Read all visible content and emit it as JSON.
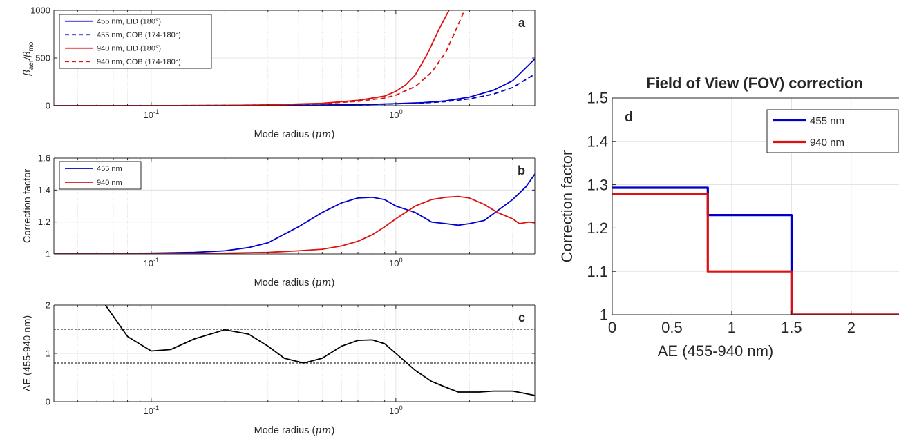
{
  "colors": {
    "blue": "#0000cc",
    "red": "#dd1111",
    "black": "#000000"
  },
  "chart_data": [
    {
      "id": "a",
      "type": "line",
      "panel_label": "a",
      "xlabel_prefix": "Mode radius (",
      "xlabel_unit": "μm",
      "xlabel_suffix": ")",
      "ylabel_main": "β",
      "ylabel_sub1": "aer",
      "ylabel_mid": "/β",
      "ylabel_sub2": "mol",
      "x_scale": "log",
      "xlim": [
        0.04,
        3.7
      ],
      "ylim": [
        0,
        1000
      ],
      "yticks": [
        0,
        500,
        1000
      ],
      "xtick_labels": [
        {
          "value": 0.1,
          "base": "10",
          "exp": "-1"
        },
        {
          "value": 1,
          "base": "10",
          "exp": "0"
        }
      ],
      "grid": true,
      "legend_position": "top-left",
      "series": [
        {
          "name": "455 nm, LID (180°)",
          "color": "blue",
          "dash": "solid",
          "x": [
            0.04,
            0.1,
            0.3,
            0.5,
            0.8,
            1.0,
            1.3,
            1.6,
            2.0,
            2.5,
            3.0,
            3.7
          ],
          "y": [
            0,
            0,
            2,
            6,
            13,
            20,
            32,
            50,
            90,
            160,
            260,
            490
          ]
        },
        {
          "name": "455 nm, COB (174-180°)",
          "color": "blue",
          "dash": "dashed",
          "x": [
            0.04,
            0.1,
            0.3,
            0.5,
            0.8,
            1.0,
            1.3,
            1.6,
            2.0,
            2.5,
            3.0,
            3.7
          ],
          "y": [
            0,
            0,
            2,
            6,
            12,
            18,
            28,
            42,
            70,
            120,
            190,
            330
          ]
        },
        {
          "name": "940 nm, LID (180°)",
          "color": "red",
          "dash": "solid",
          "x": [
            0.04,
            0.1,
            0.2,
            0.3,
            0.5,
            0.7,
            0.9,
            1.0,
            1.1,
            1.2,
            1.35,
            1.5,
            1.65
          ],
          "y": [
            0,
            0,
            3,
            8,
            25,
            55,
            100,
            150,
            220,
            320,
            550,
            800,
            1000
          ]
        },
        {
          "name": "940 nm, COB (174-180°)",
          "color": "red",
          "dash": "dashed",
          "x": [
            0.04,
            0.1,
            0.2,
            0.3,
            0.5,
            0.7,
            0.9,
            1.0,
            1.2,
            1.4,
            1.6,
            1.8,
            1.9
          ],
          "y": [
            0,
            0,
            3,
            7,
            22,
            45,
            80,
            110,
            200,
            350,
            560,
            850,
            990
          ]
        }
      ]
    },
    {
      "id": "b",
      "type": "line",
      "panel_label": "b",
      "xlabel_prefix": "Mode radius (",
      "xlabel_unit": "μm",
      "xlabel_suffix": ")",
      "ylabel": "Correction factor",
      "x_scale": "log",
      "xlim": [
        0.04,
        3.7
      ],
      "ylim": [
        1,
        1.6
      ],
      "yticks": [
        1,
        1.2,
        1.4,
        1.6
      ],
      "xtick_labels": [
        {
          "value": 0.1,
          "base": "10",
          "exp": "-1"
        },
        {
          "value": 1,
          "base": "10",
          "exp": "0"
        }
      ],
      "grid": true,
      "legend_position": "top-left",
      "series": [
        {
          "name": "455 nm",
          "color": "blue",
          "dash": "solid",
          "x": [
            0.04,
            0.1,
            0.15,
            0.2,
            0.25,
            0.3,
            0.4,
            0.5,
            0.6,
            0.7,
            0.8,
            0.9,
            1.0,
            1.2,
            1.4,
            1.6,
            1.8,
            2.0,
            2.3,
            2.6,
            3.0,
            3.4,
            3.7
          ],
          "y": [
            1.0,
            1.005,
            1.01,
            1.02,
            1.04,
            1.07,
            1.17,
            1.26,
            1.32,
            1.35,
            1.355,
            1.34,
            1.3,
            1.26,
            1.2,
            1.19,
            1.18,
            1.19,
            1.21,
            1.27,
            1.34,
            1.42,
            1.5
          ]
        },
        {
          "name": "940 nm",
          "color": "red",
          "dash": "solid",
          "x": [
            0.04,
            0.1,
            0.2,
            0.3,
            0.4,
            0.5,
            0.6,
            0.7,
            0.8,
            0.9,
            1.0,
            1.2,
            1.4,
            1.6,
            1.8,
            2.0,
            2.3,
            2.6,
            3.0,
            3.2,
            3.5,
            3.7
          ],
          "y": [
            1.0,
            1.0,
            1.005,
            1.01,
            1.02,
            1.03,
            1.05,
            1.08,
            1.12,
            1.17,
            1.22,
            1.3,
            1.34,
            1.355,
            1.36,
            1.35,
            1.31,
            1.26,
            1.22,
            1.19,
            1.2,
            1.195
          ]
        }
      ]
    },
    {
      "id": "c",
      "type": "line",
      "panel_label": "c",
      "xlabel_prefix": "Mode radius (",
      "xlabel_unit": "μm",
      "xlabel_suffix": ")",
      "ylabel": "AE (455-940 nm)",
      "x_scale": "log",
      "xlim": [
        0.04,
        3.7
      ],
      "ylim": [
        0,
        2
      ],
      "yticks": [
        0,
        1,
        2
      ],
      "xtick_labels": [
        {
          "value": 0.1,
          "base": "10",
          "exp": "-1"
        },
        {
          "value": 1,
          "base": "10",
          "exp": "0"
        }
      ],
      "grid": true,
      "reference_lines": [
        0.8,
        1.5
      ],
      "series": [
        {
          "color": "black",
          "dash": "solid",
          "x": [
            0.065,
            0.08,
            0.1,
            0.12,
            0.15,
            0.2,
            0.25,
            0.3,
            0.35,
            0.42,
            0.5,
            0.6,
            0.7,
            0.8,
            0.9,
            1.0,
            1.2,
            1.4,
            1.6,
            1.8,
            2.2,
            2.5,
            3.0,
            3.3,
            3.7
          ],
          "y": [
            2.0,
            1.35,
            1.05,
            1.08,
            1.3,
            1.49,
            1.4,
            1.15,
            0.9,
            0.8,
            0.9,
            1.15,
            1.27,
            1.28,
            1.2,
            1.0,
            0.65,
            0.42,
            0.3,
            0.2,
            0.2,
            0.22,
            0.22,
            0.18,
            0.13
          ]
        }
      ]
    },
    {
      "id": "d",
      "type": "line",
      "title": "Field of View (FOV) correction",
      "panel_label": "d",
      "xlabel": "AE (455-940 nm)",
      "ylabel": "Correction factor",
      "xlim": [
        0,
        2.4
      ],
      "ylim": [
        1,
        1.5
      ],
      "xticks": [
        0,
        0.5,
        1,
        1.5,
        2
      ],
      "yticks": [
        1,
        1.1,
        1.2,
        1.3,
        1.4,
        1.5
      ],
      "grid": true,
      "legend_position": "top-right",
      "series": [
        {
          "name": "455 nm",
          "color": "blue",
          "dash": "solid",
          "x": [
            0,
            0.8,
            0.8,
            1.5,
            1.5,
            2.4
          ],
          "y": [
            1.293,
            1.293,
            1.23,
            1.23,
            1.0,
            1.0
          ]
        },
        {
          "name": "940 nm",
          "color": "red",
          "dash": "solid",
          "x": [
            0,
            0.8,
            0.8,
            1.5,
            1.5,
            2.4
          ],
          "y": [
            1.278,
            1.278,
            1.1,
            1.1,
            1.0,
            1.0
          ]
        }
      ]
    }
  ]
}
